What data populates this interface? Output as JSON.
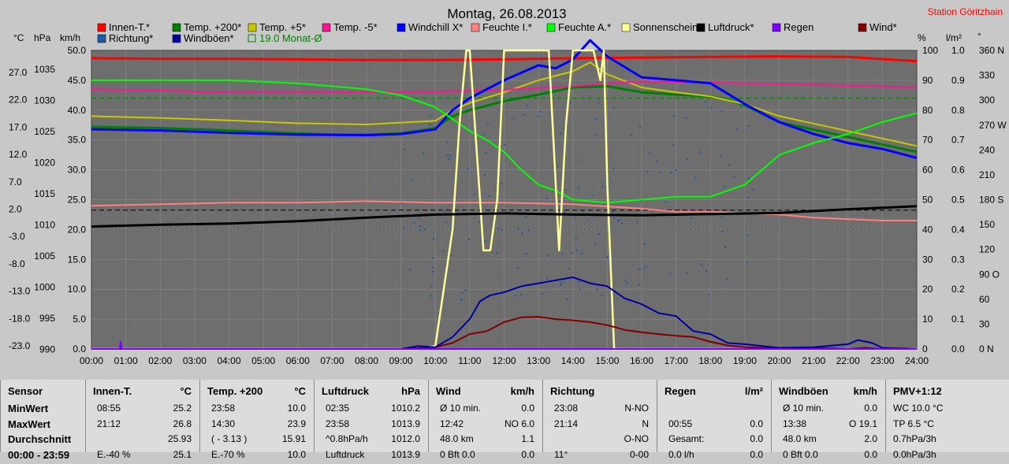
{
  "chart_data": {
    "type": "line",
    "title": "Montag, 26.08.2013",
    "station": "Station Göritzhain",
    "x_ticks": [
      "00:00",
      "01:00",
      "02:00",
      "03:00",
      "04:00",
      "05:00",
      "06:00",
      "07:00",
      "08:00",
      "09:00",
      "10:00",
      "11:00",
      "12:00",
      "13:00",
      "14:00",
      "15:00",
      "16:00",
      "17:00",
      "18:00",
      "19:00",
      "20:00",
      "21:00",
      "22:00",
      "23:00",
      "24:00"
    ],
    "axis_units": {
      "temp": "°C",
      "pressure": "hPa",
      "speed": "km/h",
      "percent": "%",
      "rain": "l/m²",
      "dir": "°"
    },
    "temp_ticks": [
      "27.0",
      "22.0",
      "17.0",
      "12.0",
      "7.0",
      "2.0",
      "-3.0",
      "-8.0",
      "-13.0",
      "-18.0",
      "-23.0"
    ],
    "pressure_ticks": [
      "1035",
      "1030",
      "1025",
      "1020",
      "1015",
      "1010",
      "1005",
      "1000",
      "995",
      "990"
    ],
    "speed_ticks": [
      "50.0",
      "45.0",
      "40.0",
      "35.0",
      "30.0",
      "25.0",
      "20.0",
      "15.0",
      "10.0",
      "5.0",
      "0.0"
    ],
    "percent_ticks": [
      "100",
      "90",
      "80",
      "70",
      "60",
      "50",
      "40",
      "30",
      "20",
      "10",
      "0"
    ],
    "rain_ticks": [
      "1.0",
      "0.9",
      "0.8",
      "0.7",
      "0.6",
      "0.5",
      "0.4",
      "0.3",
      "0.2",
      "0.1",
      "0.0"
    ],
    "dir_ticks": [
      "360 N",
      "330",
      "300",
      "270 W",
      "240",
      "210",
      "180 S",
      "150",
      "120",
      "90 O",
      "60",
      "30",
      "0 N"
    ],
    "ylim_speed": [
      0,
      50
    ],
    "legend": [
      {
        "name": "Innen-T.*",
        "color": "#ff0000"
      },
      {
        "name": "Temp. +200*",
        "color": "#008000"
      },
      {
        "name": "Temp. +5*",
        "color": "#c8c800"
      },
      {
        "name": "Temp. -5*",
        "color": "#ff1493"
      },
      {
        "name": "Windchill X*",
        "color": "#0000ff"
      },
      {
        "name": "Feuchte I.*",
        "color": "#ff8080"
      },
      {
        "name": "Feuchte A.*",
        "color": "#00ff00"
      },
      {
        "name": "Sonnenschein",
        "color": "#ffff99"
      },
      {
        "name": "Luftdruck*",
        "color": "#000000"
      },
      {
        "name": "Regen",
        "color": "#8000ff"
      },
      {
        "name": "Wind*",
        "color": "#800000"
      },
      {
        "name": "Richtung*",
        "color": "#1e5aa0"
      },
      {
        "name": "Windböen*",
        "color": "#0000a0"
      },
      {
        "name": "19.0 Monat-Ø",
        "color": "#008000"
      }
    ],
    "series": [
      {
        "name": "Innen-T.*",
        "unit": "°C",
        "x": [
          0,
          2,
          4,
          6,
          8,
          10,
          12,
          14,
          16,
          18,
          20,
          22,
          24
        ],
        "values": [
          25.7,
          25.6,
          25.6,
          25.5,
          25.4,
          25.4,
          25.5,
          25.7,
          25.8,
          25.9,
          26.0,
          25.9,
          25.2
        ]
      },
      {
        "name": "Temp. +200*",
        "unit": "°C",
        "x": [
          0,
          2,
          4,
          6,
          7,
          8,
          9,
          10,
          10.5,
          11,
          12,
          13,
          14,
          15,
          16,
          17,
          18,
          18.5,
          19,
          20,
          22,
          24
        ],
        "values": [
          14.2,
          14.0,
          13.6,
          13.1,
          12.9,
          12.9,
          13.1,
          14.0,
          16.0,
          17.0,
          18.5,
          19.6,
          20.8,
          21.0,
          20.0,
          19.6,
          19.3,
          18.8,
          17.8,
          15.0,
          12.5,
          10.0
        ]
      },
      {
        "name": "Temp. +5*",
        "unit": "°C",
        "x": [
          0,
          2,
          4,
          6,
          8,
          10,
          10.5,
          11,
          12,
          13,
          14,
          14.5,
          15,
          16,
          17,
          18,
          19,
          20,
          22,
          24
        ],
        "values": [
          16.0,
          15.7,
          15.3,
          14.8,
          14.6,
          15.2,
          17.0,
          18.2,
          20.0,
          22.0,
          23.5,
          25.0,
          23.0,
          20.8,
          20.0,
          19.3,
          18.0,
          16.0,
          13.5,
          11.0
        ]
      },
      {
        "name": "Temp. -5*",
        "unit": "°C",
        "x": [
          0,
          2,
          4,
          6,
          8,
          10,
          12,
          14,
          15,
          16,
          18,
          20,
          22,
          24
        ],
        "values": [
          20.5,
          20.3,
          20.0,
          20.0,
          20.0,
          20.1,
          20.4,
          21.0,
          21.5,
          21.8,
          21.6,
          21.4,
          21.2,
          20.8
        ]
      },
      {
        "name": "Windchill X*",
        "unit": "°C",
        "x": [
          0,
          2,
          4,
          6,
          8,
          9,
          10,
          10.5,
          11,
          12,
          13,
          13.5,
          14,
          14.5,
          15,
          16,
          17,
          18,
          19,
          20,
          21,
          22,
          23,
          24
        ],
        "values": [
          13.8,
          13.6,
          13.2,
          12.9,
          12.8,
          13.0,
          13.8,
          17.0,
          19.0,
          22.0,
          24.5,
          24.0,
          25.5,
          28.7,
          26.0,
          22.5,
          22.0,
          21.5,
          18.0,
          15.0,
          13.0,
          11.5,
          10.5,
          9.0
        ]
      },
      {
        "name": "Feuchte I.*",
        "unit": "%",
        "x": [
          0,
          2,
          4,
          6,
          8,
          10,
          12,
          14,
          16,
          17,
          18,
          19,
          20,
          21,
          22,
          23,
          24
        ],
        "values": [
          48,
          48.5,
          49,
          49,
          49.5,
          49,
          49,
          48.5,
          47,
          46,
          46,
          45.5,
          45,
          44,
          43.5,
          43,
          43
        ]
      },
      {
        "name": "Feuchte A.*",
        "unit": "%",
        "x": [
          0,
          2,
          4,
          6,
          8,
          9,
          10,
          11,
          11.5,
          12,
          12.5,
          13,
          13.5,
          14,
          15,
          16,
          17,
          18,
          19,
          19.5,
          20,
          21,
          22,
          23,
          24
        ],
        "values": [
          90,
          90,
          90,
          89,
          87,
          85,
          81,
          73,
          70,
          66,
          60,
          55,
          53,
          50,
          49,
          50,
          51,
          51,
          55,
          60,
          65,
          69,
          72,
          76,
          79
        ]
      },
      {
        "name": "Sonnenschein",
        "unit": "%",
        "x": [
          0,
          9.5,
          10,
          10.5,
          10.7,
          10.9,
          11.0,
          11.3,
          11.4,
          11.6,
          11.8,
          12.0,
          12.2,
          12.5,
          13.0,
          13.2,
          13.3,
          13.6,
          13.8,
          14.0,
          14.2,
          14.4,
          14.6,
          14.8,
          14.9,
          15.0,
          15.2,
          24
        ],
        "values": [
          0,
          0,
          1,
          40,
          75,
          100,
          100,
          50,
          33,
          33,
          50,
          100,
          100,
          100,
          100,
          100,
          100,
          33,
          75,
          100,
          100,
          100,
          100,
          90,
          100,
          55,
          0,
          0
        ]
      },
      {
        "name": "Luftdruck*",
        "unit": "hPa",
        "x": [
          0,
          2,
          4,
          6,
          8,
          10,
          12,
          14,
          16,
          18,
          20,
          22,
          24
        ],
        "values": [
          1010.5,
          1010.8,
          1011.0,
          1011.4,
          1012.0,
          1012.5,
          1012.7,
          1012.5,
          1012.4,
          1012.6,
          1012.8,
          1013.4,
          1013.9
        ]
      },
      {
        "name": "Wind*",
        "unit": "km/h",
        "x": [
          0,
          8,
          9,
          10,
          10.5,
          11,
          11.5,
          12,
          12.5,
          13,
          13.5,
          14,
          14.5,
          15,
          15.5,
          16,
          16.5,
          17,
          17.5,
          18,
          18.5,
          19,
          19.5,
          20,
          21,
          22,
          22.5,
          23,
          24
        ],
        "values": [
          0,
          0,
          0,
          0.3,
          1.0,
          2.5,
          3.0,
          4.5,
          5.3,
          5.4,
          5.0,
          4.8,
          4.5,
          4.0,
          3.2,
          2.8,
          2.5,
          2.2,
          2.0,
          1.2,
          0.6,
          0.3,
          0.2,
          0.1,
          0.2,
          0,
          0.2,
          0,
          0
        ]
      },
      {
        "name": "Windböen*",
        "unit": "km/h",
        "x": [
          0,
          8,
          9,
          9.5,
          10,
          10.5,
          11,
          11.3,
          11.6,
          12,
          12.5,
          13,
          13.5,
          14,
          14.5,
          15,
          15.5,
          16,
          16.5,
          17,
          17.5,
          18,
          18.5,
          19,
          19.5,
          20,
          21,
          22,
          22.3,
          22.7,
          23,
          24
        ],
        "values": [
          0,
          0,
          0,
          0.5,
          0.3,
          2.0,
          5.0,
          8.0,
          9.0,
          9.5,
          10.5,
          11.0,
          11.5,
          12.0,
          11.0,
          10.5,
          8.5,
          7.5,
          6.0,
          5.5,
          3.0,
          2.5,
          1.0,
          0.8,
          0.5,
          0.2,
          0.3,
          0.8,
          1.5,
          1.0,
          0.2,
          0
        ]
      },
      {
        "name": "Regen",
        "unit": "l/m²",
        "x": [
          0,
          0.82,
          0.85,
          0.88,
          24
        ],
        "values": [
          0,
          0,
          0.025,
          0,
          0
        ]
      }
    ],
    "reference_lines": [
      {
        "name": "19.0 Monat-Ø",
        "unit": "°C",
        "value": 19.0,
        "color": "#008000",
        "style": "dashed"
      },
      {
        "unit": "hPa",
        "value": 1013.25,
        "color": "#000000",
        "style": "dashed"
      },
      {
        "unit": "%",
        "value": 40,
        "color": "#008080",
        "style": "dotted"
      }
    ],
    "grid": true,
    "legend_placement": "top"
  },
  "table": [
    {
      "title": "Sensor",
      "unit": "",
      "rows": [
        {
          "label": "MinWert"
        },
        {
          "label": "MaxWert"
        },
        {
          "label": "Durchschnitt"
        },
        {
          "label": "00:00 - 23:59"
        }
      ]
    },
    {
      "title": "Innen-T.",
      "unit": "°C",
      "rows": [
        {
          "a": "08:55",
          "b": "25.2"
        },
        {
          "a": "21:12",
          "b": "26.8"
        },
        {
          "a": "",
          "b": "25.93"
        },
        {
          "a": "E.-40 %",
          "b": "25.1"
        }
      ]
    },
    {
      "title": "Temp. +200",
      "unit": "°C",
      "rows": [
        {
          "a": "23:58",
          "b": "10.0"
        },
        {
          "a": "14:30",
          "b": "23.9"
        },
        {
          "a": "( - 3.13 )",
          "b": "15.91"
        },
        {
          "a": "E.-70 %",
          "b": "10.0"
        }
      ]
    },
    {
      "title": "Luftdruck",
      "unit": "hPa",
      "rows": [
        {
          "a": "02:35",
          "b": "1010.2"
        },
        {
          "a": "23:58",
          "b": "1013.9"
        },
        {
          "a": "^0.8hPa/h",
          "b": "1012.0"
        },
        {
          "a": "Luftdruck",
          "b": "1013.9"
        }
      ]
    },
    {
      "title": "Wind",
      "unit": "km/h",
      "rows": [
        {
          "a": "Ø 10 min.",
          "b": "0.0"
        },
        {
          "a": "12:42",
          "m": "NO 6.0"
        },
        {
          "a": "48.0 km",
          "b": "1.1"
        },
        {
          "a": "0 Bft 0.0",
          "b": "0.0"
        }
      ]
    },
    {
      "title": "Richtung",
      "unit": "",
      "rows": [
        {
          "a": "23:08",
          "b": "N-NO"
        },
        {
          "a": "21:14",
          "b": "N"
        },
        {
          "a": "",
          "b": "O-NO"
        },
        {
          "a": "11°",
          "b": "0-00"
        }
      ]
    },
    {
      "title": "Regen",
      "unit": "l/m²",
      "rows": [
        {
          "a": "",
          "b": ""
        },
        {
          "a": "00:55",
          "b": "0.0"
        },
        {
          "a": "Gesamt:",
          "b": "0.0"
        },
        {
          "a": "0.0 l/h",
          "b": "0.0"
        }
      ]
    },
    {
      "title": "Windböen",
      "unit": "km/h",
      "rows": [
        {
          "a": "Ø 10 min.",
          "b": "0.0"
        },
        {
          "a": "13:38",
          "m": "O 19.1"
        },
        {
          "a": "48.0 km",
          "b": "2.0"
        },
        {
          "a": "0 Bft 0.0",
          "b": "0.0"
        }
      ]
    },
    {
      "title": "PMV+1:12",
      "unit": "",
      "rows": [
        {
          "a": "WC 10.0 °C"
        },
        {
          "a": "TP 6.5 °C"
        },
        {
          "a": "0.7hPa/3h"
        },
        {
          "a": "0.0hPa/3h"
        }
      ]
    }
  ]
}
